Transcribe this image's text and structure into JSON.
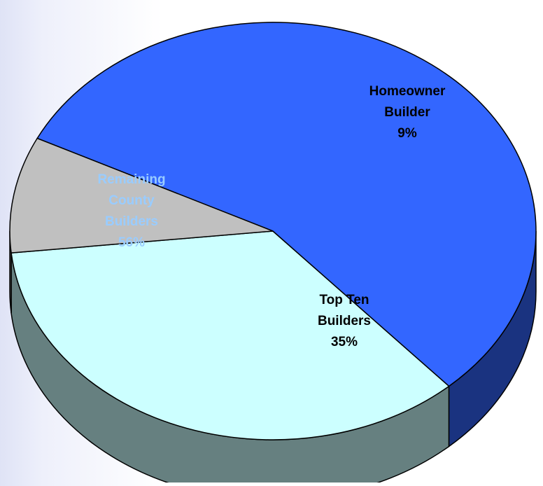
{
  "chart_data": {
    "type": "pie",
    "style": "3d",
    "title": "",
    "slices": [
      {
        "name": "Top Ten Builders",
        "label_lines": [
          "Top Ten",
          "Builders",
          "35%"
        ],
        "value": 35,
        "color": "#ccffff",
        "side_color": "#668080",
        "label_color": "#000000"
      },
      {
        "name": "Remaining County Builders",
        "label_lines": [
          "Remaining",
          "County",
          "Builders",
          "56%"
        ],
        "value": 56,
        "color": "#3366ff",
        "side_color": "#1a3380",
        "label_color": "#99ccff"
      },
      {
        "name": "Homeowner Builder",
        "label_lines": [
          "Homeowner",
          "Builder",
          "9%"
        ],
        "value": 9,
        "color": "#c0c0c0",
        "side_color": "#606060",
        "label_color": "#000000"
      }
    ],
    "legend": "none"
  }
}
